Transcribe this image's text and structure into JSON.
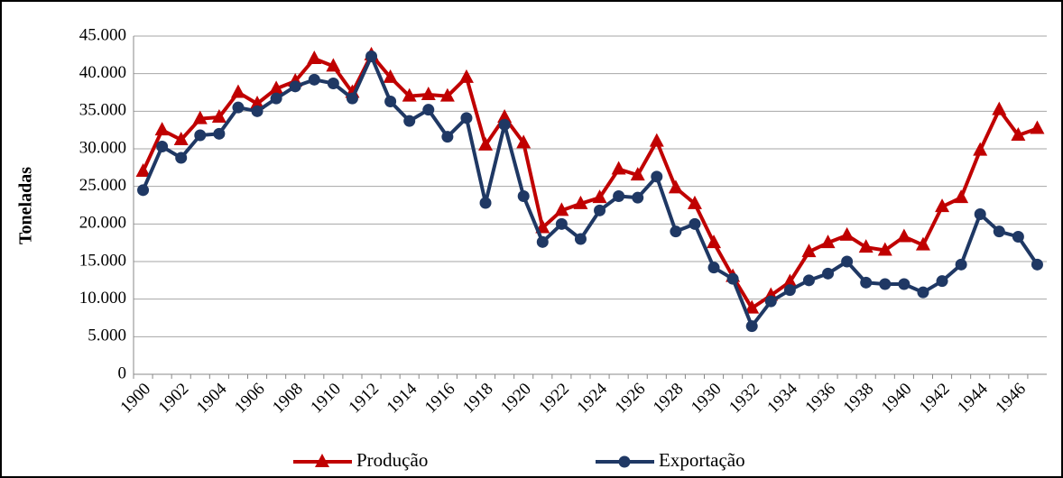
{
  "chart_data": {
    "type": "line",
    "ylabel": "Toneladas",
    "categories": [
      "1900",
      null,
      "1902",
      null,
      "1904",
      null,
      "1906",
      null,
      "1908",
      null,
      "1910",
      null,
      "1912",
      null,
      "1914",
      null,
      "1916",
      null,
      "1918",
      null,
      "1920",
      null,
      "1922",
      null,
      "1924",
      null,
      "1926",
      null,
      "1928",
      null,
      "1930",
      null,
      "1932",
      null,
      "1934",
      null,
      "1936",
      null,
      "1938",
      null,
      "1940",
      null,
      "1942",
      null,
      "1944",
      null,
      "1946",
      null
    ],
    "series": [
      {
        "name": "Produção",
        "color": "#c00000",
        "marker": "triangle",
        "values": [
          27000,
          32500,
          31200,
          34000,
          34200,
          37500,
          36000,
          38000,
          39000,
          42000,
          41000,
          37500,
          42500,
          39500,
          37000,
          37200,
          37000,
          39500,
          30500,
          34200,
          30800,
          19500,
          21800,
          22700,
          23500,
          27300,
          26500,
          31000,
          24800,
          22700,
          17500,
          13000,
          8800,
          10500,
          12300,
          16300,
          17500,
          18500,
          16900,
          16500,
          18300,
          17200,
          22300,
          23500,
          29800,
          35200,
          31800,
          32700
        ]
      },
      {
        "name": "Exportação",
        "color": "#1f3864",
        "marker": "circle",
        "values": [
          24500,
          30300,
          28800,
          31800,
          32000,
          35500,
          35000,
          36700,
          38300,
          39200,
          38700,
          36700,
          42300,
          36300,
          33700,
          35200,
          31600,
          34100,
          22800,
          33200,
          23700,
          17600,
          20000,
          18000,
          21800,
          23700,
          23500,
          26300,
          19000,
          20000,
          14200,
          12700,
          6400,
          9700,
          11200,
          12500,
          13400,
          15000,
          12200,
          12000,
          12000,
          10900,
          12400,
          14600,
          21300,
          19000,
          18300,
          14600
        ]
      }
    ],
    "ylim": [
      0,
      45000
    ],
    "yticks": [
      0,
      {
        "value": 5000,
        "label": "5.000"
      },
      {
        "value": 10000,
        "label": "10.000"
      },
      {
        "value": 15000,
        "label": "15.000"
      },
      {
        "value": 20000,
        "label": "20.000"
      },
      {
        "value": 25000,
        "label": "25.000"
      },
      {
        "value": 30000,
        "label": "30.000"
      },
      {
        "value": 35000,
        "label": "35.000"
      },
      {
        "value": 40000,
        "label": "40.000"
      },
      {
        "value": 45000,
        "label": "45.000"
      }
    ],
    "grid": true,
    "legend": "bottom"
  }
}
